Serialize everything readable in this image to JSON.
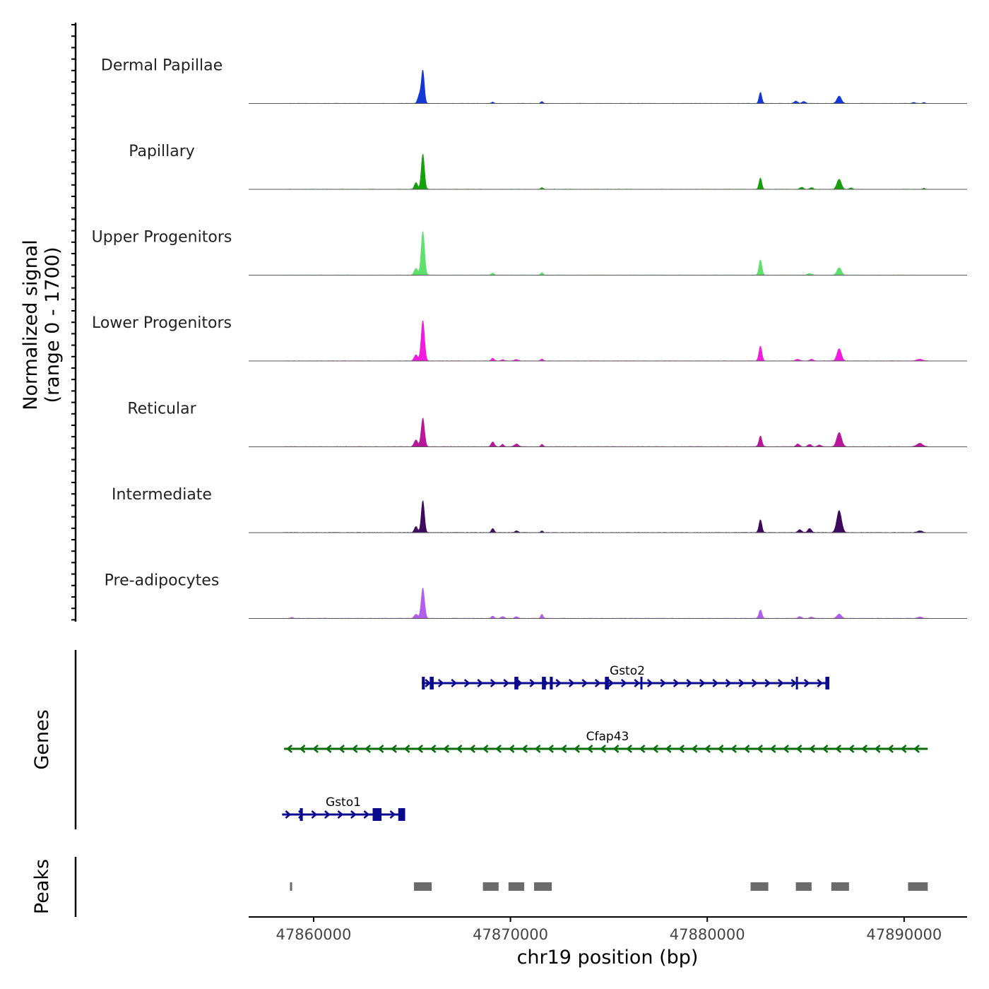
{
  "chart_data": {
    "type": "area",
    "title": "",
    "signal_ylabel_line1": "Normalized signal",
    "signal_ylabel_line2": "(range 0 - 1700)",
    "y_range": [
      0,
      1700
    ],
    "x_range": [
      47856700,
      47893200
    ],
    "xlabel": "chr19 position (bp)",
    "x_ticks": [
      47860000,
      47870000,
      47880000,
      47890000
    ],
    "x_tick_labels": [
      "47860000",
      "47870000",
      "47880000",
      "47890000"
    ],
    "tracks": [
      {
        "name": "Dermal Papillae",
        "color": "#1338d6",
        "peaks": [
          [
            47865550,
            0.98,
            75
          ],
          [
            47865370,
            0.25,
            80
          ],
          [
            47869100,
            0.04,
            60
          ],
          [
            47871600,
            0.06,
            60
          ],
          [
            47882700,
            0.33,
            70
          ],
          [
            47884500,
            0.07,
            90
          ],
          [
            47884900,
            0.06,
            90
          ],
          [
            47886700,
            0.22,
            110
          ],
          [
            47890500,
            0.03,
            80
          ],
          [
            47891000,
            0.03,
            60
          ]
        ],
        "noise": 0.008
      },
      {
        "name": "Papillary",
        "color": "#16a00c",
        "peaks": [
          [
            47865550,
            1.05,
            80
          ],
          [
            47865200,
            0.2,
            80
          ],
          [
            47871600,
            0.05,
            60
          ],
          [
            47882700,
            0.34,
            70
          ],
          [
            47884800,
            0.06,
            90
          ],
          [
            47885300,
            0.05,
            80
          ],
          [
            47886700,
            0.3,
            110
          ],
          [
            47887300,
            0.04,
            80
          ],
          [
            47891000,
            0.03,
            60
          ]
        ],
        "noise": 0.008
      },
      {
        "name": "Upper Progenitors",
        "color": "#5ee06c",
        "peaks": [
          [
            47865550,
            1.3,
            85
          ],
          [
            47865200,
            0.2,
            90
          ],
          [
            47869100,
            0.06,
            70
          ],
          [
            47871600,
            0.08,
            60
          ],
          [
            47882700,
            0.45,
            75
          ],
          [
            47885200,
            0.05,
            100
          ],
          [
            47886700,
            0.22,
            110
          ]
        ],
        "noise": 0.008
      },
      {
        "name": "Lower Progenitors",
        "color": "#f01bde",
        "peaks": [
          [
            47865550,
            1.2,
            85
          ],
          [
            47865200,
            0.18,
            90
          ],
          [
            47869100,
            0.08,
            70
          ],
          [
            47869600,
            0.04,
            70
          ],
          [
            47870300,
            0.04,
            90
          ],
          [
            47871600,
            0.06,
            60
          ],
          [
            47882700,
            0.44,
            75
          ],
          [
            47884600,
            0.05,
            100
          ],
          [
            47885300,
            0.05,
            90
          ],
          [
            47886700,
            0.36,
            110
          ],
          [
            47890800,
            0.05,
            140
          ]
        ],
        "noise": 0.01
      },
      {
        "name": "Reticular",
        "color": "#b8179a",
        "peaks": [
          [
            47865550,
            0.85,
            85
          ],
          [
            47865200,
            0.2,
            90
          ],
          [
            47869100,
            0.14,
            80
          ],
          [
            47869600,
            0.07,
            70
          ],
          [
            47870300,
            0.08,
            100
          ],
          [
            47871600,
            0.07,
            60
          ],
          [
            47882700,
            0.32,
            75
          ],
          [
            47884600,
            0.08,
            90
          ],
          [
            47885200,
            0.07,
            90
          ],
          [
            47885700,
            0.05,
            90
          ],
          [
            47886700,
            0.42,
            120
          ],
          [
            47890800,
            0.1,
            150
          ]
        ],
        "noise": 0.012
      },
      {
        "name": "Intermediate",
        "color": "#3d0a5e",
        "peaks": [
          [
            47865550,
            0.95,
            80
          ],
          [
            47865200,
            0.18,
            80
          ],
          [
            47869100,
            0.12,
            70
          ],
          [
            47870300,
            0.05,
            80
          ],
          [
            47871600,
            0.05,
            60
          ],
          [
            47882700,
            0.38,
            75
          ],
          [
            47884700,
            0.09,
            90
          ],
          [
            47885200,
            0.12,
            90
          ],
          [
            47886700,
            0.65,
            120
          ],
          [
            47890800,
            0.05,
            130
          ]
        ],
        "noise": 0.012
      },
      {
        "name": "Pre-adipocytes",
        "color": "#b25cf0",
        "peaks": [
          [
            47865550,
            0.9,
            85
          ],
          [
            47865200,
            0.12,
            90
          ],
          [
            47858900,
            0.03,
            60
          ],
          [
            47869100,
            0.07,
            70
          ],
          [
            47869600,
            0.05,
            80
          ],
          [
            47870300,
            0.05,
            80
          ],
          [
            47871600,
            0.12,
            60
          ],
          [
            47882700,
            0.25,
            75
          ],
          [
            47884700,
            0.05,
            90
          ],
          [
            47885300,
            0.04,
            90
          ],
          [
            47886700,
            0.13,
            110
          ],
          [
            47890800,
            0.04,
            110
          ]
        ],
        "noise": 0.012
      }
    ],
    "genes_ylabel": "Genes",
    "genes": [
      {
        "name": "Gsto2",
        "color": "#0a0a8c",
        "strand": "+",
        "start": 47865500,
        "end": 47886200,
        "exons": [
          [
            47865500,
            47865650
          ],
          [
            47865900,
            47866100
          ],
          [
            47870200,
            47870400
          ],
          [
            47871600,
            47871800
          ],
          [
            47872000,
            47872150
          ],
          [
            47874800,
            47875000
          ],
          [
            47876600,
            47876700
          ],
          [
            47884500,
            47884600
          ],
          [
            47886000,
            47886200
          ]
        ]
      },
      {
        "name": "Cfap43",
        "color": "#0a6e0a",
        "strand": "-",
        "start": 47858500,
        "end": 47891200,
        "exons": []
      },
      {
        "name": "Gsto1",
        "color": "#0a0a8c",
        "strand": "+",
        "start": 47858400,
        "end": 47864600,
        "exons": [
          [
            47859300,
            47859450
          ],
          [
            47863000,
            47863450
          ],
          [
            47864300,
            47864650
          ]
        ]
      }
    ],
    "peaks_ylabel": "Peaks",
    "peak_color": "#6b6b6b",
    "peak_regions": [
      [
        47858800,
        47858900
      ],
      [
        47865100,
        47866000
      ],
      [
        47868600,
        47869400
      ],
      [
        47869900,
        47870700
      ],
      [
        47871200,
        47872100
      ],
      [
        47882200,
        47883100
      ],
      [
        47884500,
        47885300
      ],
      [
        47886300,
        47887200
      ],
      [
        47890200,
        47891200
      ]
    ]
  }
}
